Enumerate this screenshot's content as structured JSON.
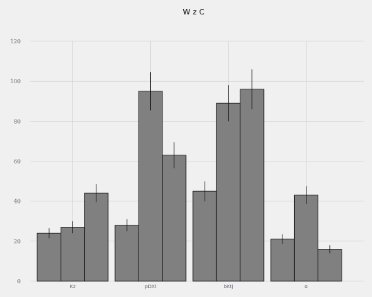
{
  "chart_data": {
    "type": "bar",
    "title": "W  z C",
    "xlabel": "",
    "ylabel": "",
    "categories": [
      "Kz",
      "pDXl",
      "bKtj",
      "α"
    ],
    "series": [
      {
        "values": [
          24,
          28,
          45,
          21
        ],
        "errors": [
          2.5,
          3,
          5,
          2.5
        ]
      },
      {
        "values": [
          27,
          95,
          89,
          43
        ],
        "errors": [
          3,
          9.5,
          9,
          4.5
        ]
      },
      {
        "values": [
          44,
          63,
          96,
          16
        ],
        "errors": [
          4.5,
          6.5,
          10,
          2
        ]
      }
    ],
    "ylim": [
      0,
      120
    ],
    "yticks": [
      0,
      20,
      40,
      60,
      80,
      100,
      120
    ],
    "grid": true,
    "bar_color": "#808080",
    "edge_color": "#111111",
    "background_color": "#f0f0f0"
  }
}
